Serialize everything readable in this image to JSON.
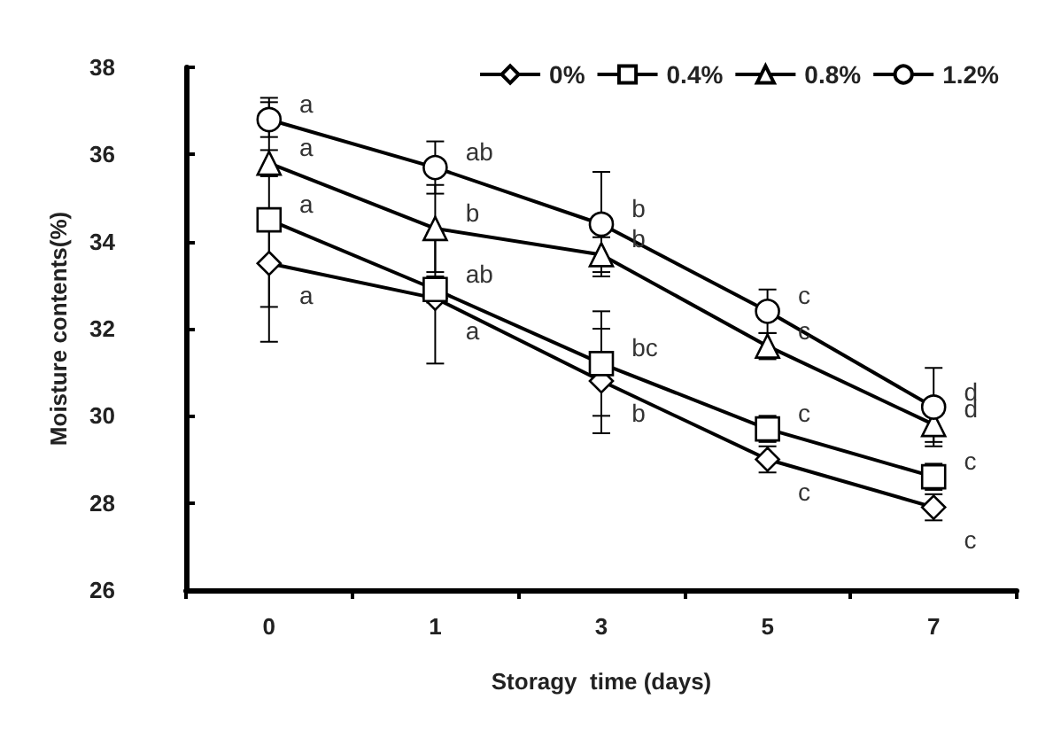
{
  "chart_data": {
    "type": "line",
    "xlabel": "Storagy  time (days)",
    "ylabel": "Moisture contents(%)",
    "categories": [
      "0",
      "1",
      "3",
      "5",
      "7"
    ],
    "ylim": [
      26,
      38
    ],
    "yticks": [
      26,
      28,
      30,
      32,
      34,
      36,
      38
    ],
    "grid": false,
    "legend": "top right",
    "series": [
      {
        "name": "0%",
        "color": "#000000",
        "marker": "diamond",
        "values": [
          33.5,
          32.7,
          30.8,
          29.0,
          27.9
        ],
        "errors": [
          1.0,
          1.5,
          1.2,
          0.3,
          0.3
        ],
        "value_labels": [
          "a",
          "a",
          "b",
          "c",
          "c"
        ]
      },
      {
        "name": "0.4%",
        "color": "#000000",
        "marker": "square",
        "values": [
          34.5,
          32.9,
          31.2,
          29.7,
          28.6
        ],
        "errors": [
          2.8,
          0.3,
          1.2,
          0.3,
          0.3
        ],
        "value_labels": [
          "a",
          "ab",
          "bc",
          "c",
          "c"
        ]
      },
      {
        "name": "0.8%",
        "color": "#000000",
        "marker": "triangle",
        "values": [
          35.8,
          34.3,
          33.7,
          31.6,
          29.8
        ],
        "errors": [
          0.3,
          1.0,
          0.4,
          0.3,
          0.4
        ],
        "value_labels": [
          "a",
          "b",
          "b",
          "c",
          "d"
        ]
      },
      {
        "name": "1.2%",
        "color": "#000000",
        "marker": "circle",
        "values": [
          36.8,
          35.7,
          34.4,
          32.4,
          30.2
        ],
        "errors": [
          0.4,
          0.6,
          1.2,
          0.5,
          0.9
        ],
        "value_labels": [
          "a",
          "ab",
          "b",
          "c",
          "d"
        ]
      }
    ]
  }
}
